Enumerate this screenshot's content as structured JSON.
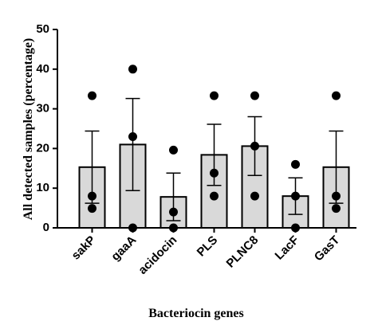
{
  "chart_data": {
    "type": "bar",
    "ylabel": "All detected samples (percentage)",
    "xlabel": "Bacteriocin genes",
    "categories": [
      "sakP",
      "gaaA",
      "acidocin",
      "PLS",
      "PLNC8",
      "LacF",
      "GasT"
    ],
    "values": [
      15.3,
      21,
      7.8,
      18.4,
      20.6,
      8,
      15.3
    ],
    "errors": [
      9.1,
      11.6,
      6,
      7.7,
      7.4,
      4.6,
      9.1
    ],
    "points": [
      [
        33.3,
        8,
        4.9
      ],
      [
        40,
        23,
        0
      ],
      [
        19.6,
        4,
        0
      ],
      [
        33.3,
        13.8,
        8
      ],
      [
        33.3,
        20.6,
        8
      ],
      [
        16,
        8,
        0
      ],
      [
        33.3,
        8,
        4.9
      ]
    ],
    "color": "#d9d9d9",
    "point_color": "#000000",
    "ylim": [
      0,
      50
    ],
    "yticks": [
      0,
      10,
      20,
      30,
      40,
      50
    ],
    "grid": false
  }
}
